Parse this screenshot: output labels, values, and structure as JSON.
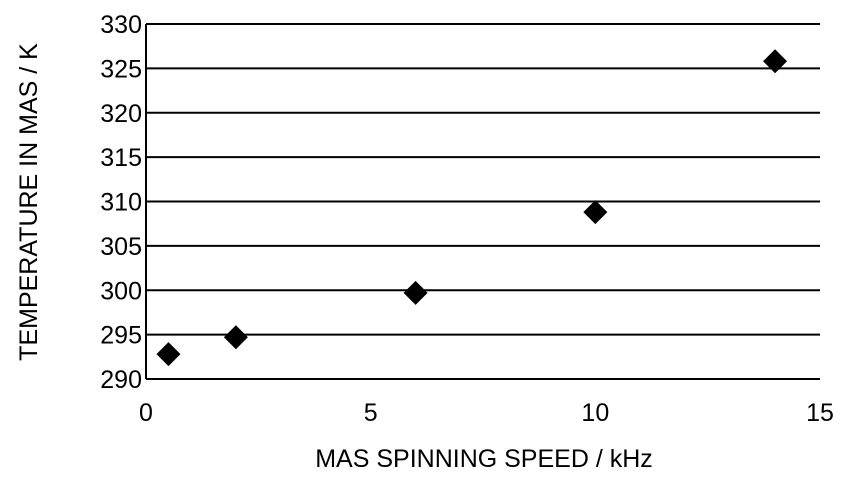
{
  "chart_data": {
    "type": "scatter",
    "title": "",
    "xlabel": "MAS SPINNING SPEED / kHz",
    "ylabel": "TEMPERATURE IN MAS / K",
    "xlim": [
      0,
      15
    ],
    "ylim": [
      290,
      330
    ],
    "xticks": [
      0,
      5,
      10,
      15
    ],
    "yticks": [
      290,
      295,
      300,
      305,
      310,
      315,
      320,
      325,
      330
    ],
    "grid": "horizontal",
    "legend": "none",
    "marker": "diamond",
    "marker_color": "#000000",
    "series": [
      {
        "x": [
          0.5,
          2,
          6,
          10,
          14
        ],
        "y": [
          292.8,
          294.7,
          299.7,
          308.8,
          325.8
        ]
      }
    ]
  }
}
